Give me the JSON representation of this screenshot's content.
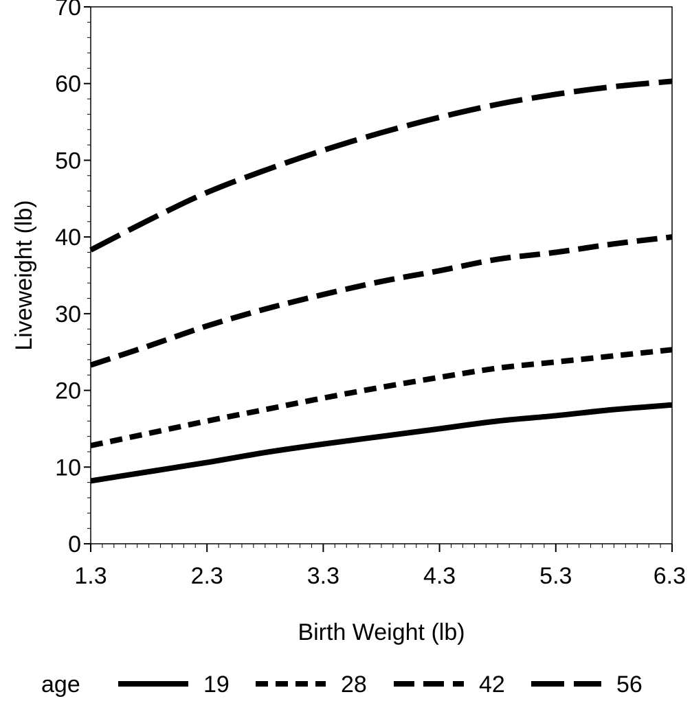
{
  "chart_data": {
    "type": "line",
    "title": "",
    "xlabel": "Birth Weight (lb)",
    "ylabel": "Liveweight (lb)",
    "xlim": [
      1.3,
      6.3
    ],
    "ylim": [
      0,
      70
    ],
    "x_ticks": [
      "1.3",
      "2.3",
      "3.3",
      "4.3",
      "5.3",
      "6.3"
    ],
    "y_ticks": [
      "0",
      "10",
      "20",
      "30",
      "40",
      "50",
      "60",
      "70"
    ],
    "grid": false,
    "legend": {
      "title": "age",
      "position": "bottom"
    },
    "series": [
      {
        "name": "19",
        "line_style": "solid",
        "x": [
          1.3,
          1.8,
          2.3,
          2.8,
          3.3,
          3.8,
          4.3,
          4.8,
          5.3,
          5.8,
          6.3
        ],
        "y": [
          8.2,
          9.4,
          10.6,
          11.9,
          13.0,
          14.0,
          15.0,
          16.0,
          16.7,
          17.5,
          18.1
        ]
      },
      {
        "name": "28",
        "line_style": "short-dash",
        "x": [
          1.3,
          1.8,
          2.3,
          2.8,
          3.3,
          3.8,
          4.3,
          4.8,
          5.3,
          5.8,
          6.3
        ],
        "y": [
          12.8,
          14.4,
          16.0,
          17.5,
          19.0,
          20.4,
          21.7,
          22.9,
          23.7,
          24.5,
          25.3
        ]
      },
      {
        "name": "42",
        "line_style": "medium-dash",
        "x": [
          1.3,
          1.8,
          2.3,
          2.8,
          3.3,
          3.8,
          4.3,
          4.8,
          5.3,
          5.8,
          6.3
        ],
        "y": [
          23.3,
          25.8,
          28.4,
          30.6,
          32.5,
          34.2,
          35.6,
          37.1,
          38.0,
          39.1,
          40.0
        ]
      },
      {
        "name": "56",
        "line_style": "long-dash",
        "x": [
          1.3,
          1.8,
          2.3,
          2.8,
          3.3,
          3.8,
          4.3,
          4.8,
          5.3,
          5.8,
          6.3
        ],
        "y": [
          38.3,
          42.2,
          45.8,
          48.7,
          51.3,
          53.6,
          55.6,
          57.3,
          58.6,
          59.6,
          60.3
        ]
      }
    ]
  }
}
